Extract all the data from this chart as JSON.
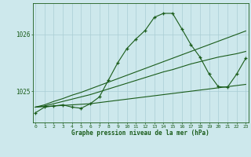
{
  "xlabel": "Graphe pression niveau de la mer (hPa)",
  "bg_color": "#cde8ec",
  "line_color": "#1a5c1a",
  "grid_color": "#aacdd4",
  "marker": "+",
  "hours": [
    0,
    1,
    2,
    3,
    4,
    5,
    6,
    7,
    8,
    9,
    10,
    11,
    12,
    13,
    14,
    15,
    16,
    17,
    18,
    19,
    20,
    21,
    22,
    23
  ],
  "main_series": [
    1024.62,
    1024.72,
    1024.74,
    1024.76,
    1024.72,
    1024.7,
    1024.78,
    1024.9,
    1025.2,
    1025.5,
    1025.75,
    1025.92,
    1026.07,
    1026.3,
    1026.37,
    1026.37,
    1026.1,
    1025.82,
    1025.6,
    1025.3,
    1025.08,
    1025.07,
    1025.3,
    1025.58
  ],
  "ref_line1": [
    1024.72,
    1024.73,
    1024.74,
    1024.75,
    1024.76,
    1024.77,
    1024.78,
    1024.8,
    1024.82,
    1024.84,
    1024.86,
    1024.88,
    1024.9,
    1024.92,
    1024.94,
    1024.96,
    1024.98,
    1025.0,
    1025.02,
    1025.04,
    1025.06,
    1025.08,
    1025.1,
    1025.12
  ],
  "ref_line2": [
    1024.72,
    1024.74,
    1024.78,
    1024.82,
    1024.86,
    1024.9,
    1024.94,
    1024.99,
    1025.04,
    1025.09,
    1025.14,
    1025.19,
    1025.24,
    1025.29,
    1025.34,
    1025.38,
    1025.43,
    1025.48,
    1025.52,
    1025.56,
    1025.6,
    1025.63,
    1025.66,
    1025.7
  ],
  "ref_line3": [
    1024.72,
    1024.76,
    1024.82,
    1024.87,
    1024.93,
    1024.98,
    1025.04,
    1025.1,
    1025.16,
    1025.22,
    1025.28,
    1025.34,
    1025.4,
    1025.46,
    1025.52,
    1025.58,
    1025.64,
    1025.7,
    1025.76,
    1025.82,
    1025.88,
    1025.94,
    1026.0,
    1026.06
  ],
  "ylim": [
    1024.45,
    1026.55
  ],
  "yticks": [
    1025.0,
    1026.0
  ],
  "ytick_labels": [
    "1025",
    "1026"
  ],
  "xticks": [
    0,
    1,
    2,
    3,
    4,
    5,
    6,
    7,
    8,
    9,
    10,
    11,
    12,
    13,
    14,
    15,
    16,
    17,
    18,
    19,
    20,
    21,
    22,
    23
  ]
}
